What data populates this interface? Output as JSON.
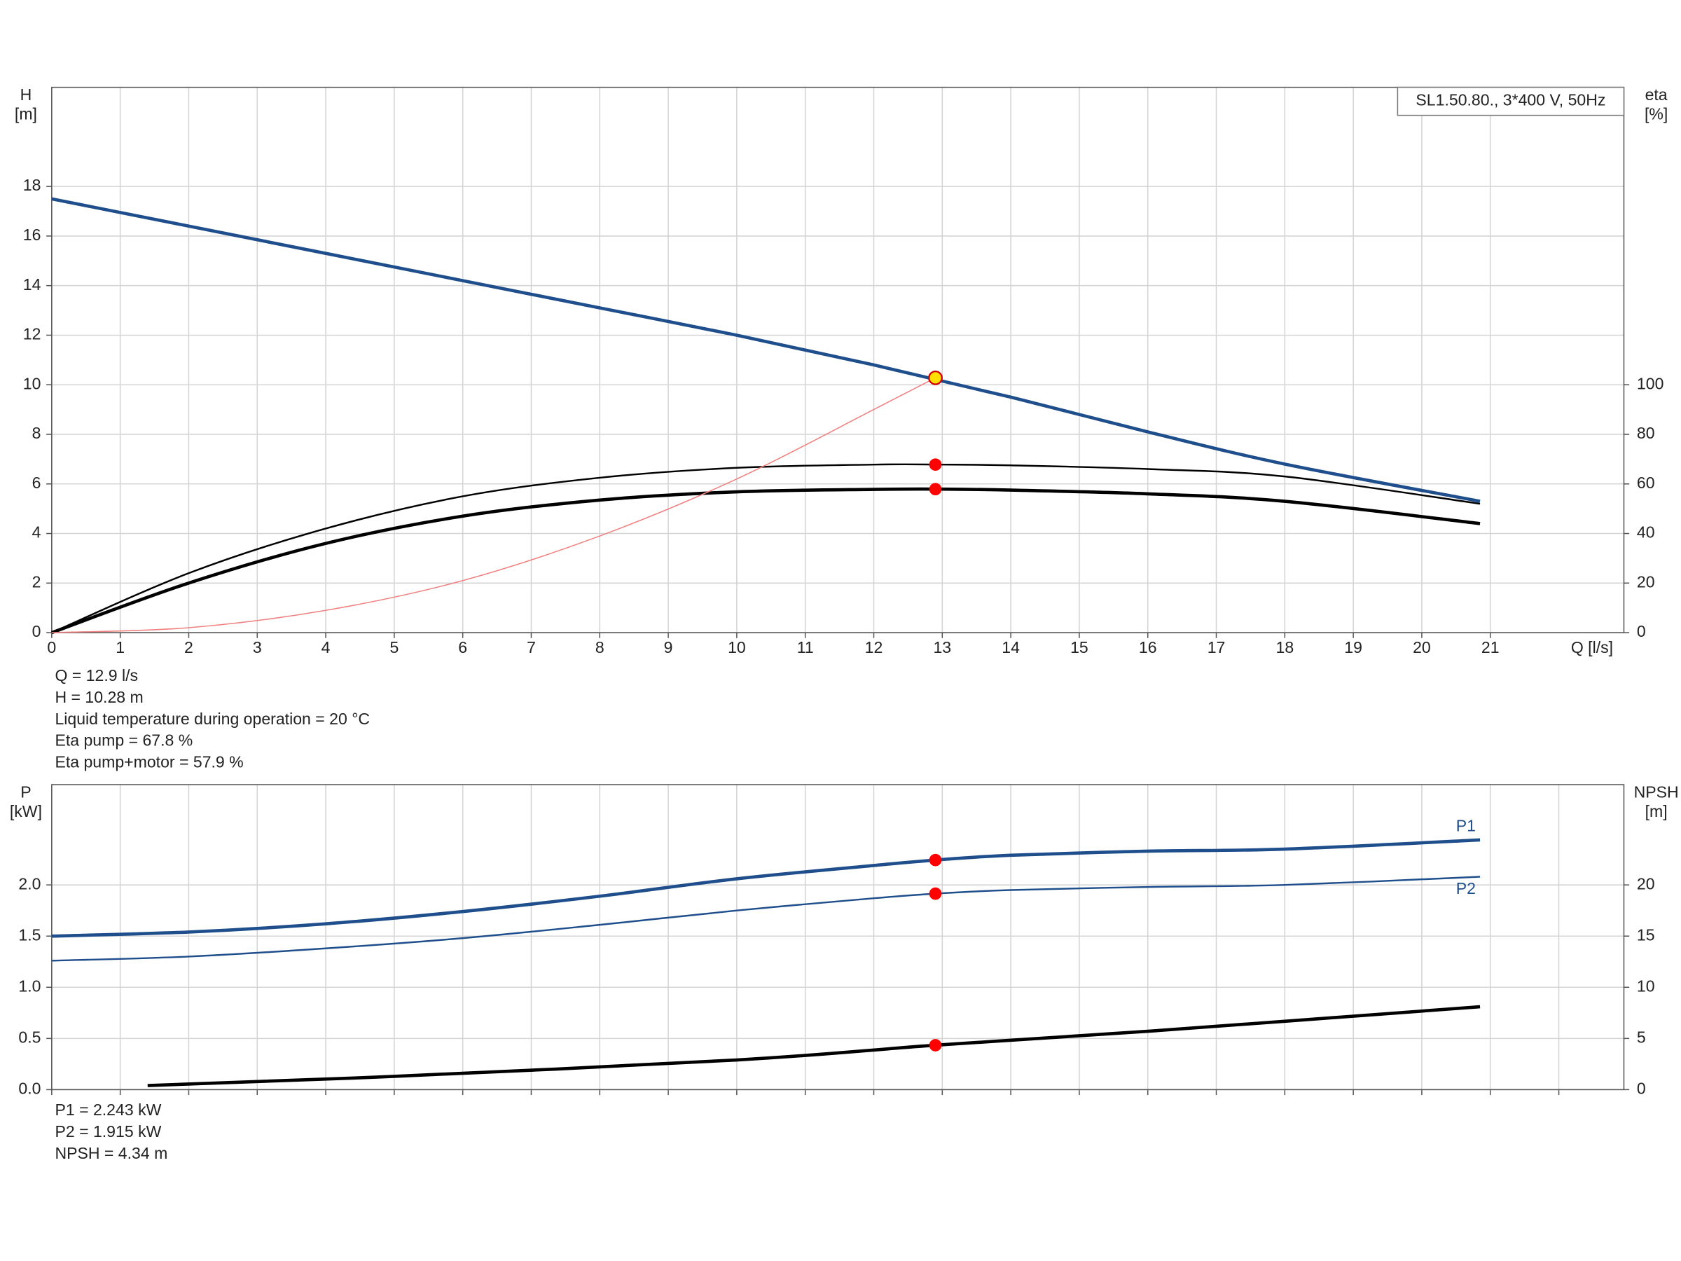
{
  "chart_data": [
    {
      "type": "line",
      "y_label": [
        "H",
        "[m]"
      ],
      "y2_label": [
        "eta",
        "[%]"
      ],
      "x_label": "Q [l/s]",
      "legend_box": "SL1.50.80., 3*400 V, 50Hz",
      "xlim": [
        0,
        22.95
      ],
      "xticks": [
        0,
        1,
        2,
        3,
        4,
        5,
        6,
        7,
        8,
        9,
        10,
        11,
        12,
        13,
        14,
        15,
        16,
        17,
        18,
        19,
        20,
        21
      ],
      "xtick_labels": true,
      "ylim": [
        0,
        22
      ],
      "yticks": [
        0,
        2,
        4,
        6,
        8,
        10,
        12,
        14,
        16,
        18
      ],
      "y2lim": [
        0,
        220
      ],
      "y2ticks": [
        0,
        20,
        40,
        60,
        80,
        100
      ],
      "grid": true,
      "series": [
        {
          "color": "#1f4e8c",
          "width": 3,
          "x": [
            0,
            2,
            4,
            6,
            8,
            10,
            12,
            14,
            16,
            18,
            20.85
          ],
          "values": [
            17.5,
            16.4,
            15.3,
            14.2,
            13.1,
            12.0,
            10.8,
            9.5,
            8.1,
            6.8,
            5.3
          ]
        },
        {
          "color": "#000000",
          "width": 1.6,
          "axis": "y2",
          "x": [
            0,
            2,
            4,
            6,
            8,
            10,
            12,
            13,
            14,
            16,
            18,
            20.85
          ],
          "values": [
            0,
            24,
            42,
            55,
            62.5,
            66.5,
            67.8,
            67.8,
            67.5,
            66,
            63,
            52
          ]
        },
        {
          "color": "#000000",
          "width": 3,
          "axis": "y2",
          "x": [
            0,
            2,
            4,
            6,
            8,
            10,
            12,
            13,
            14,
            16,
            18,
            20.85
          ],
          "values": [
            0,
            20,
            36,
            47,
            53.5,
            56.8,
            57.8,
            57.9,
            57.5,
            56,
            53,
            44
          ]
        },
        {
          "color": "#f08080",
          "width": 1,
          "x": [
            0,
            2,
            4,
            6,
            8,
            10,
            12,
            12.9
          ],
          "values": [
            0,
            0.2,
            0.9,
            2.1,
            3.9,
            6.2,
            9.0,
            10.28
          ]
        }
      ],
      "markers": [
        {
          "x": 12.9,
          "y": 10.28,
          "color": "#ffe000",
          "stroke": "#d00000",
          "r": 6
        },
        {
          "x": 12.9,
          "y": 67.8,
          "axis": "y2",
          "color": "#ff0000",
          "r": 5
        },
        {
          "x": 12.9,
          "y": 57.9,
          "axis": "y2",
          "color": "#ff0000",
          "r": 5
        }
      ],
      "annotations": [
        "Q = 12.9 l/s",
        "H = 10.28 m",
        "Liquid temperature during operation = 20 °C",
        "Eta pump = 67.8 %",
        "Eta pump+motor = 57.9 %"
      ]
    },
    {
      "type": "line",
      "y_label": [
        "P",
        "[kW]"
      ],
      "y2_label": [
        "NPSH",
        "[m]"
      ],
      "xlim": [
        0,
        22.95
      ],
      "xticks": [
        0,
        1,
        2,
        3,
        4,
        5,
        6,
        7,
        8,
        9,
        10,
        11,
        12,
        13,
        14,
        15,
        16,
        17,
        18,
        19,
        20,
        21,
        22
      ],
      "xtick_labels": false,
      "ylim": [
        0,
        2.98
      ],
      "yticks": [
        {
          "value": 0,
          "label": "0.0"
        },
        0.5,
        {
          "value": 1,
          "label": "1.0"
        },
        1.5,
        {
          "value": 2,
          "label": "2.0"
        }
      ],
      "y2lim": [
        0,
        29.8
      ],
      "y2ticks": [
        0,
        5,
        10,
        15,
        20
      ],
      "grid": true,
      "series": [
        {
          "name": "P1",
          "color": "#1f4e8c",
          "width": 3,
          "label_pos": "above",
          "x": [
            0,
            2,
            4,
            6,
            8,
            10,
            12,
            12.9,
            14,
            16,
            18,
            20.85
          ],
          "values": [
            1.5,
            1.54,
            1.62,
            1.74,
            1.89,
            2.06,
            2.19,
            2.243,
            2.29,
            2.33,
            2.35,
            2.44
          ]
        },
        {
          "name": "P2",
          "color": "#1f4e8c",
          "width": 1.6,
          "label_pos": "below",
          "x": [
            0,
            2,
            4,
            6,
            8,
            10,
            12,
            12.9,
            14,
            16,
            18,
            20.85
          ],
          "values": [
            1.26,
            1.3,
            1.38,
            1.48,
            1.61,
            1.75,
            1.87,
            1.915,
            1.95,
            1.98,
            2.0,
            2.08
          ]
        },
        {
          "color": "#000000",
          "width": 3,
          "axis": "y2",
          "x": [
            1.4,
            5,
            10,
            12.9,
            16,
            20.85
          ],
          "values": [
            0.4,
            1.3,
            2.9,
            4.34,
            5.7,
            8.1
          ]
        }
      ],
      "markers": [
        {
          "x": 12.9,
          "y": 2.243,
          "color": "#ff0000",
          "r": 5
        },
        {
          "x": 12.9,
          "y": 1.915,
          "color": "#ff0000",
          "r": 5
        },
        {
          "x": 12.9,
          "y": 4.34,
          "axis": "y2",
          "color": "#ff0000",
          "r": 5
        }
      ],
      "annotations": [
        "P1 = 2.243 kW",
        "P2 = 1.915 kW",
        "NPSH = 4.34 m"
      ]
    }
  ]
}
